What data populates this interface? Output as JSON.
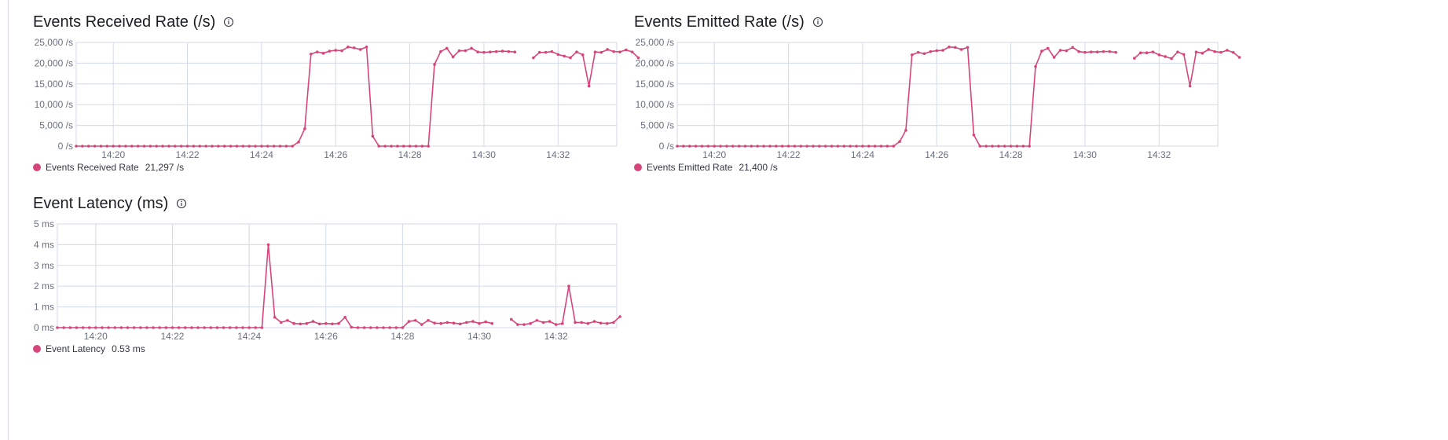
{
  "colors": {
    "series": "#d6457a",
    "grid": "#d3dae6",
    "axis_text": "#69707d"
  },
  "panels": [
    {
      "title": "Events Received Rate (/s)",
      "info_icon": "info-icon",
      "legend": {
        "label": "Events Received Rate",
        "value": "21,297 /s"
      }
    },
    {
      "title": "Events Emitted Rate (/s)",
      "info_icon": "info-icon",
      "legend": {
        "label": "Events Emitted Rate",
        "value": "21,400 /s"
      }
    },
    {
      "title": "Event Latency (ms)",
      "info_icon": "info-icon",
      "legend": {
        "label": "Event Latency",
        "value": "0.53 ms"
      }
    }
  ],
  "chart_data": [
    {
      "type": "line",
      "title": "Events Received Rate (/s)",
      "xlabel": "",
      "ylabel": "",
      "x_start": "14:19:00",
      "x_step_seconds": 10,
      "xticks": [
        "14:20",
        "14:22",
        "14:24",
        "14:26",
        "14:28",
        "14:30",
        "14:32"
      ],
      "yticks": [
        "0 /s",
        "5,000 /s",
        "10,000 /s",
        "15,000 /s",
        "20,000 /s",
        "25,000 /s"
      ],
      "ylim": [
        0,
        25000
      ],
      "grid": true,
      "series": [
        {
          "name": "Events Received Rate",
          "values": [
            0,
            0,
            0,
            0,
            0,
            0,
            0,
            0,
            0,
            0,
            0,
            0,
            0,
            0,
            0,
            0,
            0,
            0,
            0,
            0,
            0,
            0,
            0,
            0,
            0,
            0,
            0,
            0,
            0,
            0,
            0,
            0,
            0,
            0,
            0,
            0,
            1000,
            4200,
            22200,
            22700,
            22400,
            22900,
            23100,
            23000,
            23900,
            23700,
            23300,
            23900,
            2400,
            0,
            0,
            0,
            0,
            0,
            0,
            0,
            0,
            0,
            19700,
            22800,
            23600,
            21500,
            23000,
            23000,
            23600,
            22700,
            22600,
            22700,
            22800,
            22900,
            22800,
            22700,
            null,
            null,
            21300,
            22600,
            22600,
            22800,
            22100,
            21700,
            21300,
            22700,
            22000,
            14500,
            22700,
            22600,
            23300,
            22800,
            22700,
            23200,
            22700,
            21300
          ]
        }
      ]
    },
    {
      "type": "line",
      "title": "Events Emitted Rate (/s)",
      "xlabel": "",
      "ylabel": "",
      "x_start": "14:19:00",
      "x_step_seconds": 10,
      "xticks": [
        "14:20",
        "14:22",
        "14:24",
        "14:26",
        "14:28",
        "14:30",
        "14:32"
      ],
      "yticks": [
        "0 /s",
        "5,000 /s",
        "10,000 /s",
        "15,000 /s",
        "20,000 /s",
        "25,000 /s"
      ],
      "ylim": [
        0,
        25000
      ],
      "grid": true,
      "series": [
        {
          "name": "Events Emitted Rate",
          "values": [
            0,
            0,
            0,
            0,
            0,
            0,
            0,
            0,
            0,
            0,
            0,
            0,
            0,
            0,
            0,
            0,
            0,
            0,
            0,
            0,
            0,
            0,
            0,
            0,
            0,
            0,
            0,
            0,
            0,
            0,
            0,
            0,
            0,
            0,
            0,
            0,
            1100,
            3800,
            22000,
            22600,
            22300,
            22800,
            23000,
            23100,
            23900,
            23800,
            23300,
            23800,
            2700,
            0,
            0,
            0,
            0,
            0,
            0,
            0,
            0,
            0,
            19200,
            22900,
            23600,
            21400,
            23100,
            23000,
            23800,
            22800,
            22600,
            22700,
            22700,
            22800,
            22800,
            22600,
            null,
            null,
            21200,
            22500,
            22500,
            22700,
            22000,
            21600,
            21100,
            22700,
            22100,
            14500,
            22700,
            22400,
            23300,
            22800,
            22600,
            23100,
            22600,
            21400
          ]
        }
      ]
    },
    {
      "type": "line",
      "title": "Event Latency (ms)",
      "xlabel": "",
      "ylabel": "",
      "x_start": "14:19:00",
      "x_step_seconds": 10,
      "xticks": [
        "14:20",
        "14:22",
        "14:24",
        "14:26",
        "14:28",
        "14:30",
        "14:32"
      ],
      "yticks": [
        "0 ms",
        "1 ms",
        "2 ms",
        "3 ms",
        "4 ms",
        "5 ms"
      ],
      "ylim": [
        0,
        5
      ],
      "grid": true,
      "series": [
        {
          "name": "Event Latency",
          "values": [
            0,
            0,
            0,
            0,
            0,
            0,
            0,
            0,
            0,
            0,
            0,
            0,
            0,
            0,
            0,
            0,
            0,
            0,
            0,
            0,
            0,
            0,
            0,
            0,
            0,
            0,
            0,
            0,
            0,
            0,
            0,
            0,
            0,
            4.0,
            0.5,
            0.25,
            0.35,
            0.2,
            0.18,
            0.2,
            0.3,
            0.18,
            0.2,
            0.18,
            0.2,
            0.5,
            0.02,
            0,
            0,
            0,
            0,
            0,
            0,
            0,
            0,
            0.3,
            0.35,
            0.15,
            0.35,
            0.22,
            0.2,
            0.25,
            0.22,
            0.18,
            0.25,
            0.3,
            0.2,
            0.28,
            0.2,
            null,
            null,
            0.4,
            0.15,
            0.15,
            0.2,
            0.35,
            0.25,
            0.3,
            0.15,
            0.2,
            2.0,
            0.25,
            0.25,
            0.2,
            0.3,
            0.22,
            0.2,
            0.25,
            0.53
          ]
        }
      ]
    }
  ]
}
